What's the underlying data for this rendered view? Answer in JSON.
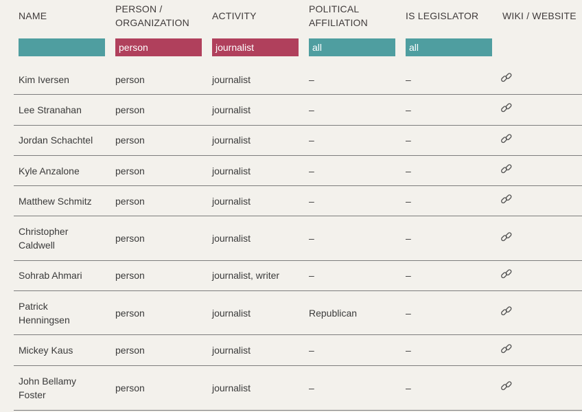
{
  "headers": {
    "name": "NAME",
    "type_line1": "PERSON /",
    "type_line2": "ORGANIZATION",
    "activity": "ACTIVITY",
    "political_line1": "POLITICAL",
    "political_line2": "AFFILIATION",
    "legislator": "IS LEGISLATOR",
    "wiki": "WIKI / WEBSITE"
  },
  "filters": {
    "name": "",
    "type": "person",
    "activity": "journalist",
    "political": "all",
    "legislator": "all"
  },
  "colors": {
    "teal": "#4f9ea0",
    "red": "#b0405c",
    "background": "#f3f1ec"
  },
  "rows": [
    {
      "name": "Kim Iversen",
      "type": "person",
      "activity": "journalist",
      "political": "–",
      "legislator": "–",
      "link_icon": "link-icon"
    },
    {
      "name": "Lee Stranahan",
      "type": "person",
      "activity": "journalist",
      "political": "–",
      "legislator": "–",
      "link_icon": "link-icon"
    },
    {
      "name": "Jordan Schachtel",
      "type": "person",
      "activity": "journalist",
      "political": "–",
      "legislator": "–",
      "link_icon": "link-icon"
    },
    {
      "name": "Kyle Anzalone",
      "type": "person",
      "activity": "journalist",
      "political": "–",
      "legislator": "–",
      "link_icon": "link-icon"
    },
    {
      "name": "Matthew Schmitz",
      "type": "person",
      "activity": "journalist",
      "political": "–",
      "legislator": "–",
      "link_icon": "link-icon"
    },
    {
      "name": "Christopher Caldwell",
      "type": "person",
      "activity": "journalist",
      "political": "–",
      "legislator": "–",
      "link_icon": "link-icon"
    },
    {
      "name": "Sohrab Ahmari",
      "type": "person",
      "activity": "journalist, writer",
      "political": "–",
      "legislator": "–",
      "link_icon": "link-icon"
    },
    {
      "name": "Patrick Henningsen",
      "type": "person",
      "activity": "journalist",
      "political": "Republican",
      "legislator": "–",
      "link_icon": "link-icon"
    },
    {
      "name": "Mickey Kaus",
      "type": "person",
      "activity": "journalist",
      "political": "–",
      "legislator": "–",
      "link_icon": "link-icon"
    },
    {
      "name": "John Bellamy Foster",
      "type": "person",
      "activity": "journalist",
      "political": "–",
      "legislator": "–",
      "link_icon": "link-icon"
    }
  ]
}
